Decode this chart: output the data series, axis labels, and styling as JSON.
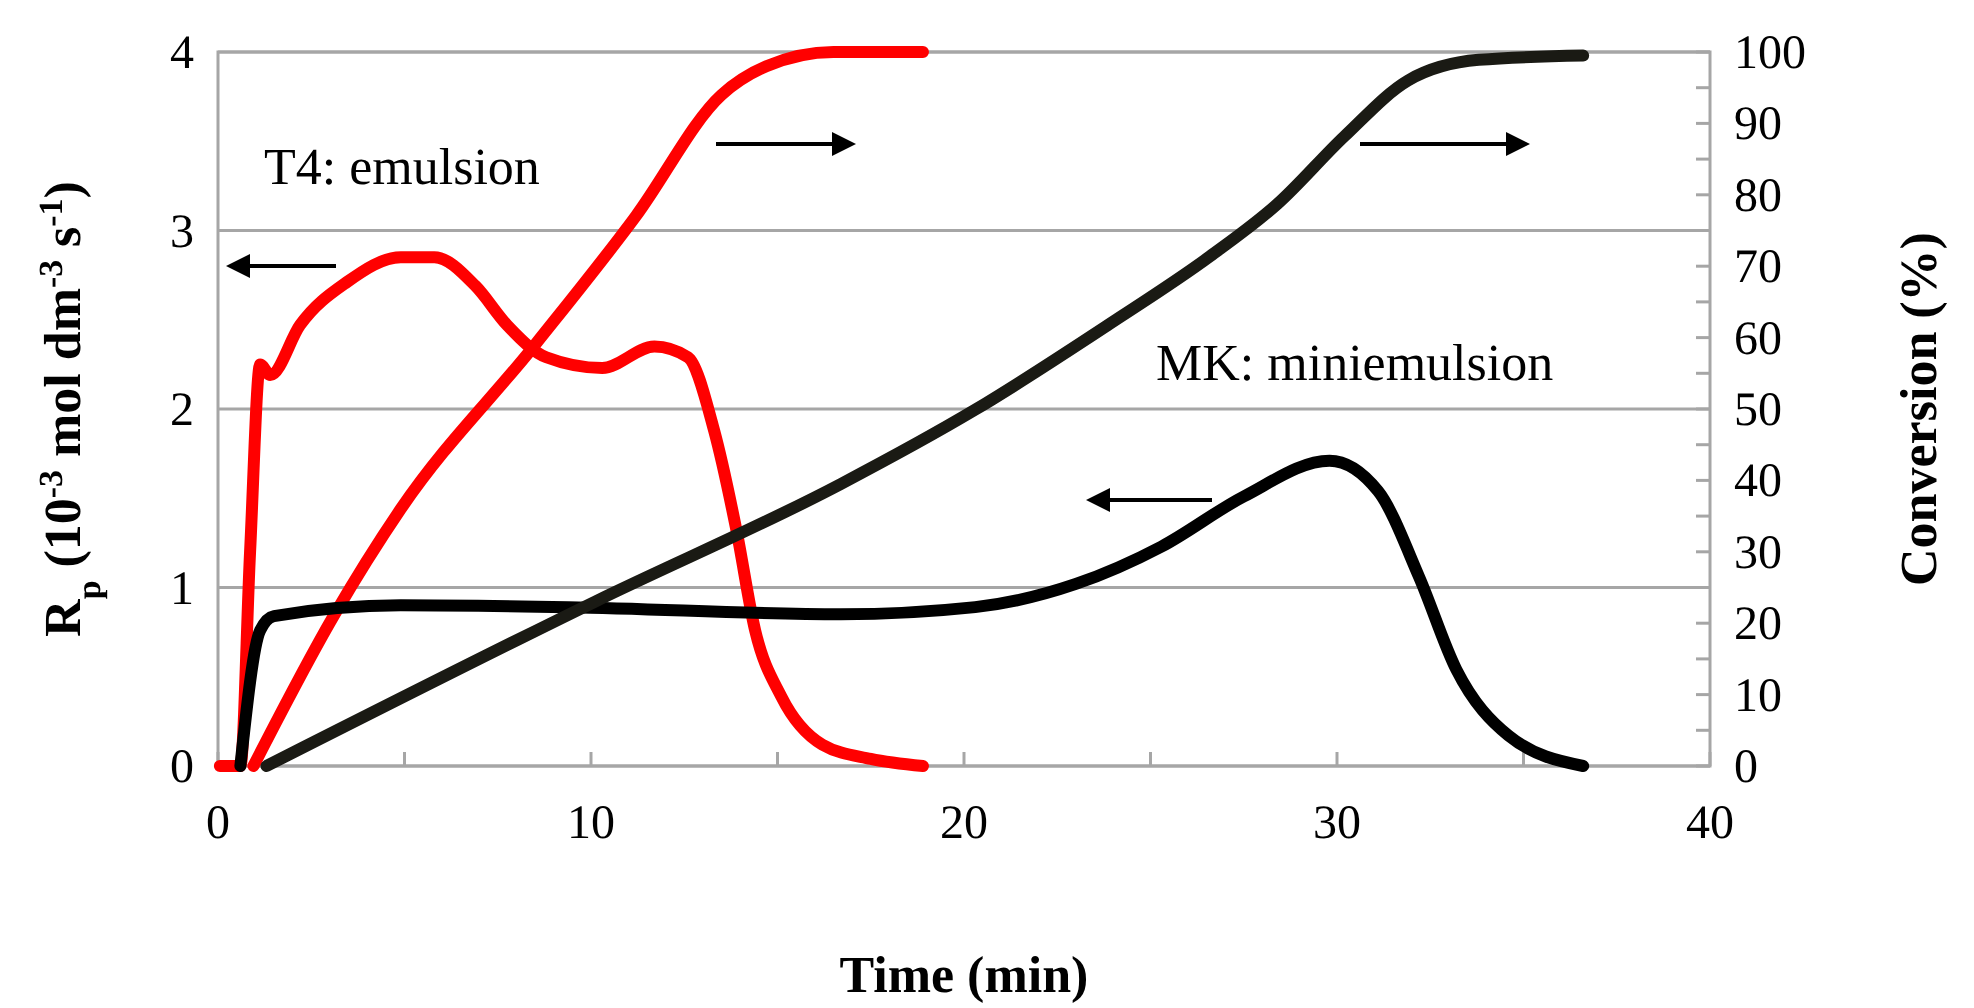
{
  "chart_data": {
    "type": "line",
    "xlabel": "Time (min)",
    "ylabel": "R$_{p}$ (10$^{-3}$ mol dm$^{-3}$ s$^{-1}$)",
    "y2label": "Conversion (%)",
    "xlim": [
      0,
      40
    ],
    "xticks": [
      0,
      {
        "value": 5,
        "label": null
      },
      10,
      {
        "value": 15,
        "label": null
      },
      20,
      {
        "value": 25,
        "label": null
      },
      30,
      {
        "value": 35,
        "label": null
      },
      40
    ],
    "ylim": [
      0,
      4
    ],
    "yticks": [
      0,
      1,
      2,
      3,
      4
    ],
    "y2lim": [
      0,
      100
    ],
    "y2ticks": [
      0,
      {
        "value": 5,
        "label": null
      },
      10,
      {
        "value": 15,
        "label": null
      },
      20,
      {
        "value": 25,
        "label": null
      },
      30,
      {
        "value": 35,
        "label": null
      },
      40,
      {
        "value": 45,
        "label": null
      },
      50,
      {
        "value": 55,
        "label": null
      },
      60,
      {
        "value": 65,
        "label": null
      },
      70,
      {
        "value": 75,
        "label": null
      },
      80,
      {
        "value": 85,
        "label": null
      },
      90,
      {
        "value": 95,
        "label": null
      },
      100
    ],
    "grid": "y",
    "marker": "none",
    "line_style": "solid",
    "series": [
      {
        "color": "#ff0000",
        "x": [
          0.05,
          0.6,
          0.86,
          1.13,
          1.4,
          2.2,
          3.45,
          4.9,
          5.8,
          6.9,
          7.75,
          8.8,
          10.3,
          11.7,
          12.6,
          13.3,
          13.9,
          14.4,
          15.1,
          16.2,
          17.5,
          18.9
        ],
        "values": [
          0,
          0,
          1.2,
          2.25,
          2.19,
          2.47,
          2.71,
          2.85,
          2.85,
          2.69,
          2.47,
          2.29,
          2.23,
          2.35,
          2.29,
          1.88,
          1.32,
          0.76,
          0.39,
          0.12,
          0.04,
          0
        ]
      },
      {
        "color": "#ff0000",
        "axis": "y2",
        "x": [
          0.95,
          3.1,
          4.9,
          8.5,
          11.2,
          13.5,
          14.7,
          16.5,
          18.9
        ],
        "values": [
          0,
          21,
          36,
          59,
          77,
          94,
          98,
          100,
          100
        ]
      },
      {
        "color": "#000000",
        "x": [
          0.6,
          1.13,
          1.5,
          4.9,
          9.4,
          16.7,
          20.3,
          23,
          25.3,
          27.5,
          29.8,
          31.1,
          32.2,
          33.2,
          34.6,
          36.6
        ],
        "values": [
          0,
          0.76,
          0.84,
          0.9,
          0.89,
          0.85,
          0.89,
          1.02,
          1.23,
          1.51,
          1.71,
          1.54,
          1.06,
          0.54,
          0.17,
          0
        ]
      },
      {
        "color": "#1a1a14",
        "axis": "y2",
        "x": [
          1.3,
          10.1,
          16.7,
          20.3,
          23.9,
          26.6,
          28.4,
          30.2,
          31.9,
          33.8,
          36.6
        ],
        "values": [
          0,
          23,
          39.5,
          49.9,
          61.9,
          71.4,
          78.7,
          88.2,
          96,
          98.9,
          99.5
        ]
      }
    ],
    "annotations": [
      "T4: emulsion",
      "MK: miniemulsion"
    ]
  }
}
